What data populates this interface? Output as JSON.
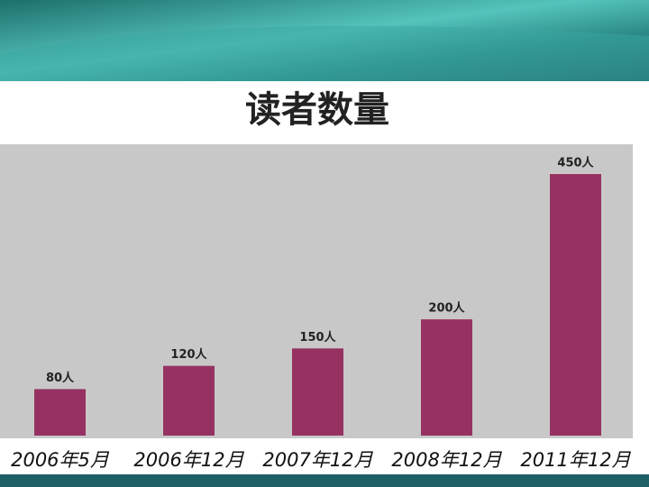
{
  "chart_data": {
    "type": "bar",
    "title": "读者数量",
    "categories": [
      "2006年5月",
      "2006年12月",
      "2007年12月",
      "2008年12月",
      "2011年12月"
    ],
    "values": [
      80,
      120,
      150,
      200,
      450
    ],
    "value_labels": [
      "80人",
      "120人",
      "150人",
      "200人",
      "450人"
    ],
    "color": "#963262"
  }
}
